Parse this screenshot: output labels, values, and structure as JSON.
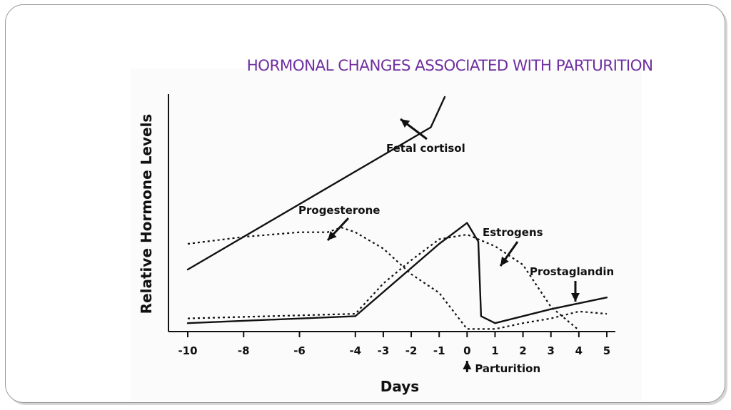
{
  "slide": {
    "title": "HORMONAL CHANGES ASSOCIATED WITH PARTURITION"
  },
  "chart_data": {
    "type": "line",
    "title": "",
    "xlabel": "Days",
    "ylabel": "Relative Hormone Levels",
    "xlim": [
      -10,
      5
    ],
    "ylim": [
      0,
      100
    ],
    "x_ticks": [
      -10,
      -8,
      -6,
      -4,
      -3,
      -2,
      -1,
      0,
      1,
      2,
      3,
      4,
      5
    ],
    "x_tick_labels": [
      "-10",
      "-8",
      "-6",
      "-4",
      "-3",
      "-2",
      "-1",
      "0",
      "1",
      "2",
      "3",
      "4",
      "5"
    ],
    "grid": false,
    "legend": "none",
    "annotation": "Parturition",
    "annotation_x": 0,
    "series": [
      {
        "name": "Fetal cortisol",
        "style": "solid",
        "x": [
          -10,
          -1.3,
          -0.8
        ],
        "y": [
          26,
          87,
          100
        ]
      },
      {
        "name": "Progesterone",
        "style": "dotted",
        "x": [
          -10,
          -8,
          -6,
          -5,
          -4.5,
          -4,
          -3,
          -2,
          -1,
          0,
          1,
          2,
          3,
          4,
          5
        ],
        "y": [
          37,
          40,
          42,
          42,
          44,
          42,
          35,
          24,
          16,
          0.5,
          0.5,
          3,
          5,
          8,
          7
        ]
      },
      {
        "name": "Estrogens",
        "style": "dotted",
        "x": [
          -10,
          -4,
          -3,
          -2,
          -1,
          0,
          1,
          2,
          3,
          4
        ],
        "y": [
          5,
          7,
          20,
          30,
          39,
          41,
          36,
          28,
          10,
          0
        ]
      },
      {
        "name": "Prostaglandin",
        "style": "solid",
        "x": [
          -10,
          -4,
          -1,
          0,
          0.4,
          0.5,
          1,
          3,
          5
        ],
        "y": [
          3,
          6,
          37,
          46,
          38,
          6,
          3,
          9,
          14
        ]
      }
    ],
    "labels": {
      "fetal_cortisol": "Fetal cortisol",
      "progesterone": "Progesterone",
      "estrogens": "Estrogens",
      "prostaglandin": "Prostaglandin"
    }
  }
}
